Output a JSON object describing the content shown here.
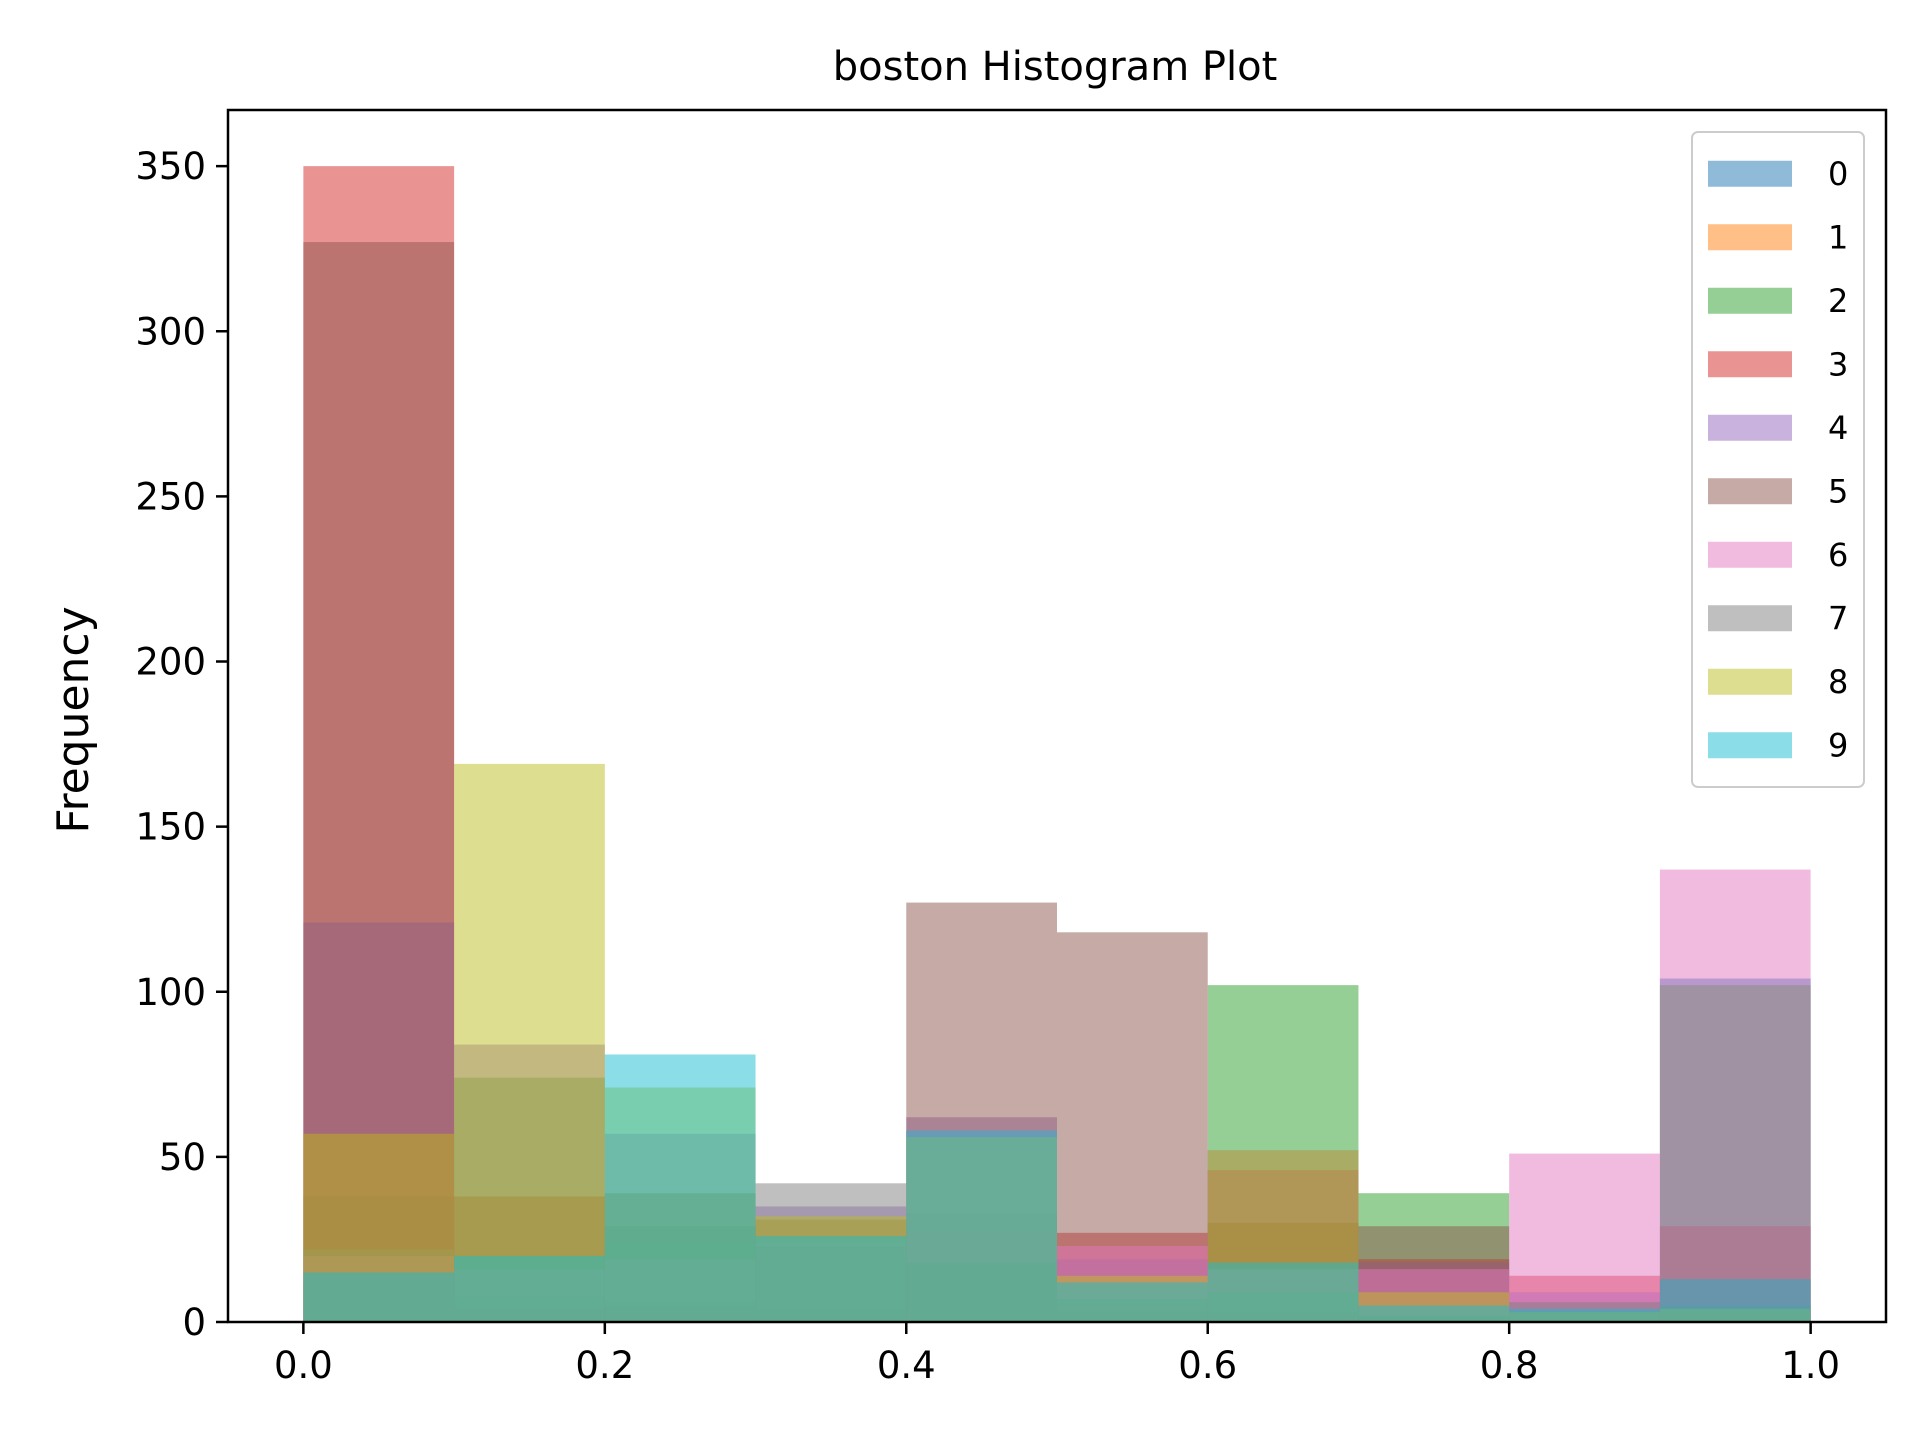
{
  "chart_data": {
    "type": "bar",
    "subtype": "overlaid-histogram",
    "title": "boston Histogram Plot",
    "xlabel": "",
    "ylabel": "Frequency",
    "xlim": [
      -0.05,
      1.05
    ],
    "ylim": [
      0,
      367
    ],
    "xticks": [
      0.0,
      0.2,
      0.4,
      0.6,
      0.8,
      1.0
    ],
    "xtick_labels": [
      "0.0",
      "0.2",
      "0.4",
      "0.6",
      "0.8",
      "1.0"
    ],
    "yticks": [
      0,
      50,
      100,
      150,
      200,
      250,
      300,
      350
    ],
    "ytick_labels": [
      "0",
      "50",
      "100",
      "150",
      "200",
      "250",
      "300",
      "350"
    ],
    "grid": false,
    "legend_position": "top-right",
    "bar_opacity": 0.5,
    "bin_edges": [
      0.0,
      0.1,
      0.2,
      0.3,
      0.4,
      0.5,
      0.6,
      0.7,
      0.8,
      0.9,
      1.0
    ],
    "series": [
      {
        "name": "0",
        "color": "#1f77b4",
        "values": [
          12,
          8,
          6,
          4,
          33,
          5,
          3,
          2,
          1,
          104
        ]
      },
      {
        "name": "1",
        "color": "#ff7f0e",
        "values": [
          57,
          4,
          2,
          1,
          20,
          6,
          3,
          2,
          1,
          4
        ]
      },
      {
        "name": "2",
        "color": "#2ca02c",
        "values": [
          38,
          74,
          29,
          22,
          58,
          3,
          102,
          39,
          0,
          102
        ]
      },
      {
        "name": "3",
        "color": "#d62728",
        "values": [
          350,
          4,
          5,
          23,
          27,
          27,
          46,
          19,
          14,
          13
        ]
      },
      {
        "name": "4",
        "color": "#9467bd",
        "values": [
          121,
          84,
          57,
          35,
          62,
          19,
          52,
          18,
          9,
          4
        ]
      },
      {
        "name": "5",
        "color": "#8c564b",
        "values": [
          327,
          38,
          39,
          31,
          127,
          118,
          30,
          29,
          3,
          29
        ]
      },
      {
        "name": "6",
        "color": "#e377c2",
        "values": [
          20,
          16,
          19,
          24,
          58,
          23,
          16,
          16,
          51,
          137
        ]
      },
      {
        "name": "7",
        "color": "#7f7f7f",
        "values": [
          22,
          20,
          24,
          42,
          18,
          7,
          9,
          2,
          6,
          5
        ]
      },
      {
        "name": "8",
        "color": "#bcbd22",
        "values": [
          57,
          169,
          71,
          32,
          56,
          14,
          52,
          9,
          3,
          4
        ]
      },
      {
        "name": "9",
        "color": "#17becf",
        "values": [
          15,
          20,
          81,
          26,
          58,
          12,
          18,
          5,
          4,
          13
        ]
      }
    ]
  }
}
